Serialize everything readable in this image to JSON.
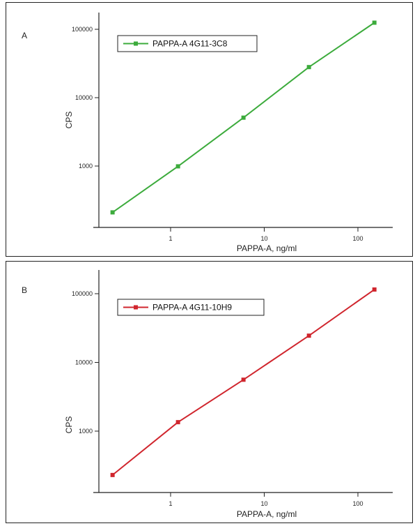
{
  "chart_data": [
    {
      "panel_label": "A",
      "type": "line",
      "xscale": "log",
      "yscale": "log",
      "x": [
        0.24,
        1.2,
        6,
        30,
        150
      ],
      "series": [
        {
          "name": "PAPPA-A 4G11-3C8",
          "values": [
            210,
            990,
            5100,
            28000,
            125000
          ],
          "color": "#3cab3c"
        }
      ],
      "xlabel": "PAPPA-A, ng/ml",
      "ylabel": "CPS",
      "x_ticks": [
        "1",
        "10",
        "100"
      ],
      "y_ticks": [
        "1000",
        "10000",
        "100000"
      ],
      "legend_position": "top-left"
    },
    {
      "panel_label": "B",
      "type": "line",
      "xscale": "log",
      "yscale": "log",
      "x": [
        0.24,
        1.2,
        6,
        30,
        150
      ],
      "series": [
        {
          "name": "PAPPA-A 4G11-10H9",
          "values": [
            230,
            1350,
            5600,
            24500,
            115000
          ],
          "color": "#d0252d"
        }
      ],
      "xlabel": "PAPPA-A, ng/ml",
      "ylabel": "CPS",
      "x_ticks": [
        "1",
        "10",
        "100"
      ],
      "y_ticks": [
        "1000",
        "10000",
        "100000"
      ],
      "legend_position": "top-left"
    }
  ]
}
